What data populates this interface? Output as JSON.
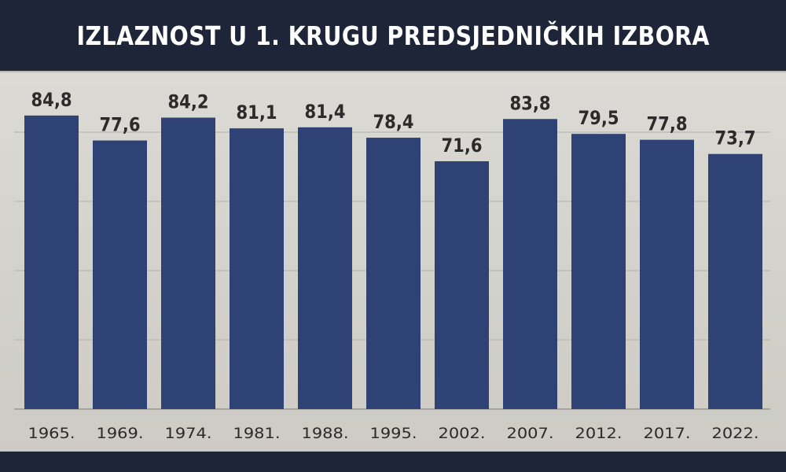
{
  "header": {
    "title": "IZLAZNOST U 1. KRUGU PREDSJEDNIČKIH IZBORA"
  },
  "colors": {
    "bar": "#2e4276",
    "background": "#d6d4ce",
    "header": "#1e2538",
    "grid": "#b8b6b0"
  },
  "chart_data": {
    "type": "bar",
    "title": "IZLAZNOST U 1. KRUGU PREDSJEDNIČKIH IZBORA",
    "categories": [
      "1965.",
      "1969.",
      "1974.",
      "1981.",
      "1988.",
      "1995.",
      "2002.",
      "2007.",
      "2012.",
      "2017.",
      "2022."
    ],
    "values": [
      84.8,
      77.6,
      84.2,
      81.1,
      81.4,
      78.4,
      71.6,
      83.8,
      79.5,
      77.8,
      73.7
    ],
    "value_labels": [
      "84,8",
      "77,6",
      "84,2",
      "81,1",
      "81,4",
      "78,4",
      "71,6",
      "83,8",
      "79,5",
      "77,8",
      "73,7"
    ],
    "xlabel": "",
    "ylabel": "",
    "ylim": [
      0,
      90
    ],
    "grid": true,
    "legend": "none"
  }
}
